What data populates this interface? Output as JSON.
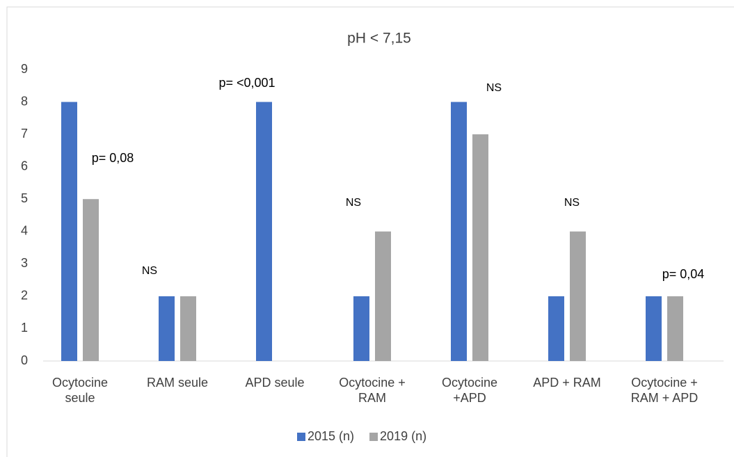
{
  "chart_data": {
    "type": "bar",
    "title": "pH < 7,15",
    "categories": [
      "Ocytocine seule",
      "RAM seule",
      "APD seule",
      "Ocytocine + RAM",
      "Ocytocine +APD",
      "APD + RAM",
      "Ocytocine + RAM + APD"
    ],
    "series": [
      {
        "name": "2015 (n)",
        "color": "#4472c4",
        "values": [
          8,
          2,
          8,
          2,
          8,
          2,
          2
        ]
      },
      {
        "name": "2019 (n)",
        "color": "#a5a5a5",
        "values": [
          5,
          2,
          0,
          4,
          7,
          4,
          2
        ]
      }
    ],
    "annotations": [
      "p= 0,08",
      "NS",
      "p= <0,001",
      "NS",
      "NS",
      "NS",
      "p= 0,04"
    ],
    "ylim": [
      0,
      9
    ],
    "yticks": [
      0,
      1,
      2,
      3,
      4,
      5,
      6,
      7,
      8,
      9
    ],
    "grid": false,
    "legend": "bottom"
  }
}
